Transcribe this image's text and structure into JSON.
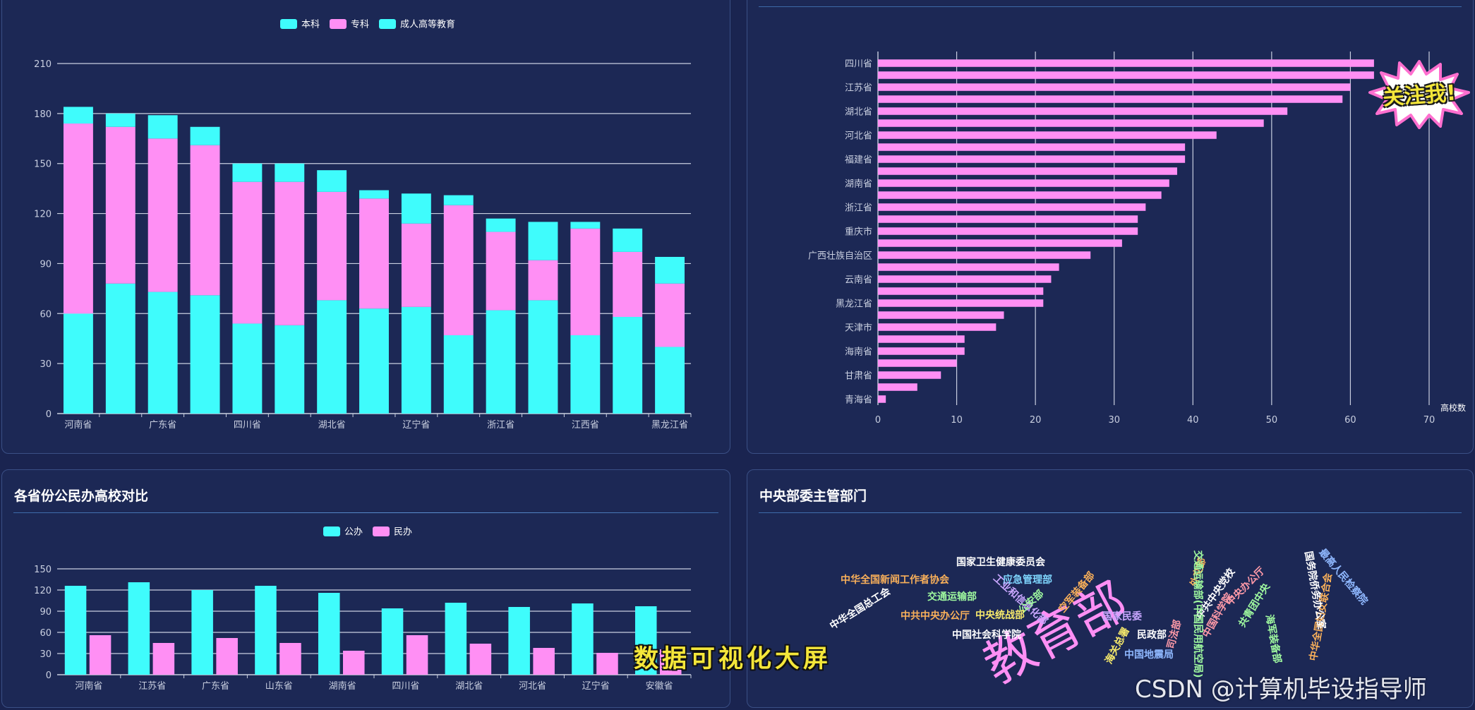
{
  "colors": {
    "cyan": "#3ffcfc",
    "pink": "#ff8ff4",
    "cloud_palette": [
      "#ff8ff4",
      "#ffffff",
      "#7fd7ff",
      "#9ff99f",
      "#f9b05a",
      "#c9a7ff",
      "#ff9aa8",
      "#8fb8ff",
      "#f6e96b",
      "#6df0d1"
    ]
  },
  "stack_chart": {
    "legend": [
      "本科",
      "专科",
      "成人高等教育"
    ]
  },
  "hbar_chart": {
    "x_axis_name": "高校数"
  },
  "pub_chart": {
    "title": "各省份公民办高校对比",
    "legend": [
      "公办",
      "民办"
    ]
  },
  "cloud_chart": {
    "title": "中央部委主管部门"
  },
  "overlay": {
    "badge": "关注我!",
    "caption": "数据可视化大屏",
    "watermark": "CSDN @计算机毕设指导师"
  },
  "chart_data": [
    {
      "type": "bar",
      "stacked": true,
      "categories": [
        "河南省",
        "",
        "广东省",
        "",
        "四川省",
        "",
        "湖北省",
        "",
        "辽宁省",
        "",
        "浙江省",
        "",
        "江西省",
        "",
        "黑龙江省"
      ],
      "series": [
        {
          "name": "本科",
          "values": [
            60,
            78,
            73,
            71,
            54,
            53,
            68,
            63,
            64,
            47,
            62,
            68,
            47,
            58,
            40
          ]
        },
        {
          "name": "专科",
          "values": [
            114,
            94,
            92,
            90,
            85,
            86,
            65,
            66,
            50,
            78,
            47,
            24,
            64,
            39,
            38
          ]
        },
        {
          "name": "成人高等教育",
          "values": [
            10,
            8,
            14,
            11,
            11,
            11,
            13,
            5,
            18,
            6,
            8,
            23,
            4,
            14,
            16
          ]
        }
      ],
      "ylim": [
        0,
        210
      ],
      "yticks": [
        0,
        30,
        60,
        90,
        120,
        150,
        180,
        210
      ],
      "grid": true,
      "legend_position": "top"
    },
    {
      "type": "bar",
      "orientation": "horizontal",
      "categories": [
        "四川省",
        "",
        "江苏省",
        "",
        "湖北省",
        "",
        "河北省",
        "",
        "福建省",
        "",
        "湖南省",
        "",
        "浙江省",
        "",
        "重庆市",
        "",
        "广西壮族自治区",
        "",
        "云南省",
        "",
        "黑龙江省",
        "",
        "天津市",
        "",
        "海南省",
        "",
        "甘肃省",
        "",
        "青海省"
      ],
      "values": [
        63,
        63,
        60,
        59,
        52,
        49,
        43,
        39,
        39,
        38,
        37,
        36,
        34,
        33,
        33,
        31,
        27,
        23,
        22,
        21,
        21,
        16,
        15,
        11,
        11,
        10,
        8,
        5,
        1
      ],
      "xlim": [
        0,
        70
      ],
      "xticks": [
        0,
        10,
        20,
        30,
        40,
        50,
        60,
        70
      ],
      "xlabel": "高校数",
      "grid": true
    },
    {
      "type": "bar",
      "categories": [
        "河南省",
        "江苏省",
        "广东省",
        "山东省",
        "湖南省",
        "四川省",
        "湖北省",
        "河北省",
        "辽宁省",
        "安徽省"
      ],
      "series": [
        {
          "name": "公办",
          "values": [
            126,
            131,
            120,
            126,
            116,
            94,
            102,
            96,
            101,
            97
          ]
        },
        {
          "name": "民办",
          "values": [
            56,
            45,
            52,
            45,
            34,
            56,
            44,
            38,
            31,
            36
          ]
        }
      ],
      "ylim": [
        0,
        150
      ],
      "yticks": [
        0,
        30,
        60,
        90,
        120,
        150
      ],
      "grid": true,
      "legend_position": "top"
    },
    {
      "type": "wordcloud",
      "words": [
        {
          "text": "教育部"
        },
        {
          "text": "国家卫生健康委员会"
        },
        {
          "text": "应急管理部"
        },
        {
          "text": "中华全国新闻工作者协会"
        },
        {
          "text": "工业和信息化部"
        },
        {
          "text": "公安部"
        },
        {
          "text": "交通运输部"
        },
        {
          "text": "中共中央办公厅"
        },
        {
          "text": "中央统战部"
        },
        {
          "text": "中华全国总工会"
        },
        {
          "text": "中国社会科学院"
        },
        {
          "text": "国家民委"
        },
        {
          "text": "民政部"
        },
        {
          "text": "中国地震局"
        },
        {
          "text": "海关总署"
        },
        {
          "text": "外交部"
        },
        {
          "text": "中共中央党校"
        },
        {
          "text": "中国科学院"
        },
        {
          "text": "共青团中央"
        },
        {
          "text": "中央办公厅"
        },
        {
          "text": "司法部"
        },
        {
          "text": "最高人民检察院"
        },
        {
          "text": "中华全国妇女联合会"
        },
        {
          "text": "海军装备部"
        },
        {
          "text": "国务院侨务办公室"
        },
        {
          "text": "交通运输部(中国民用航空局)"
        },
        {
          "text": "空军装备部"
        }
      ]
    }
  ]
}
